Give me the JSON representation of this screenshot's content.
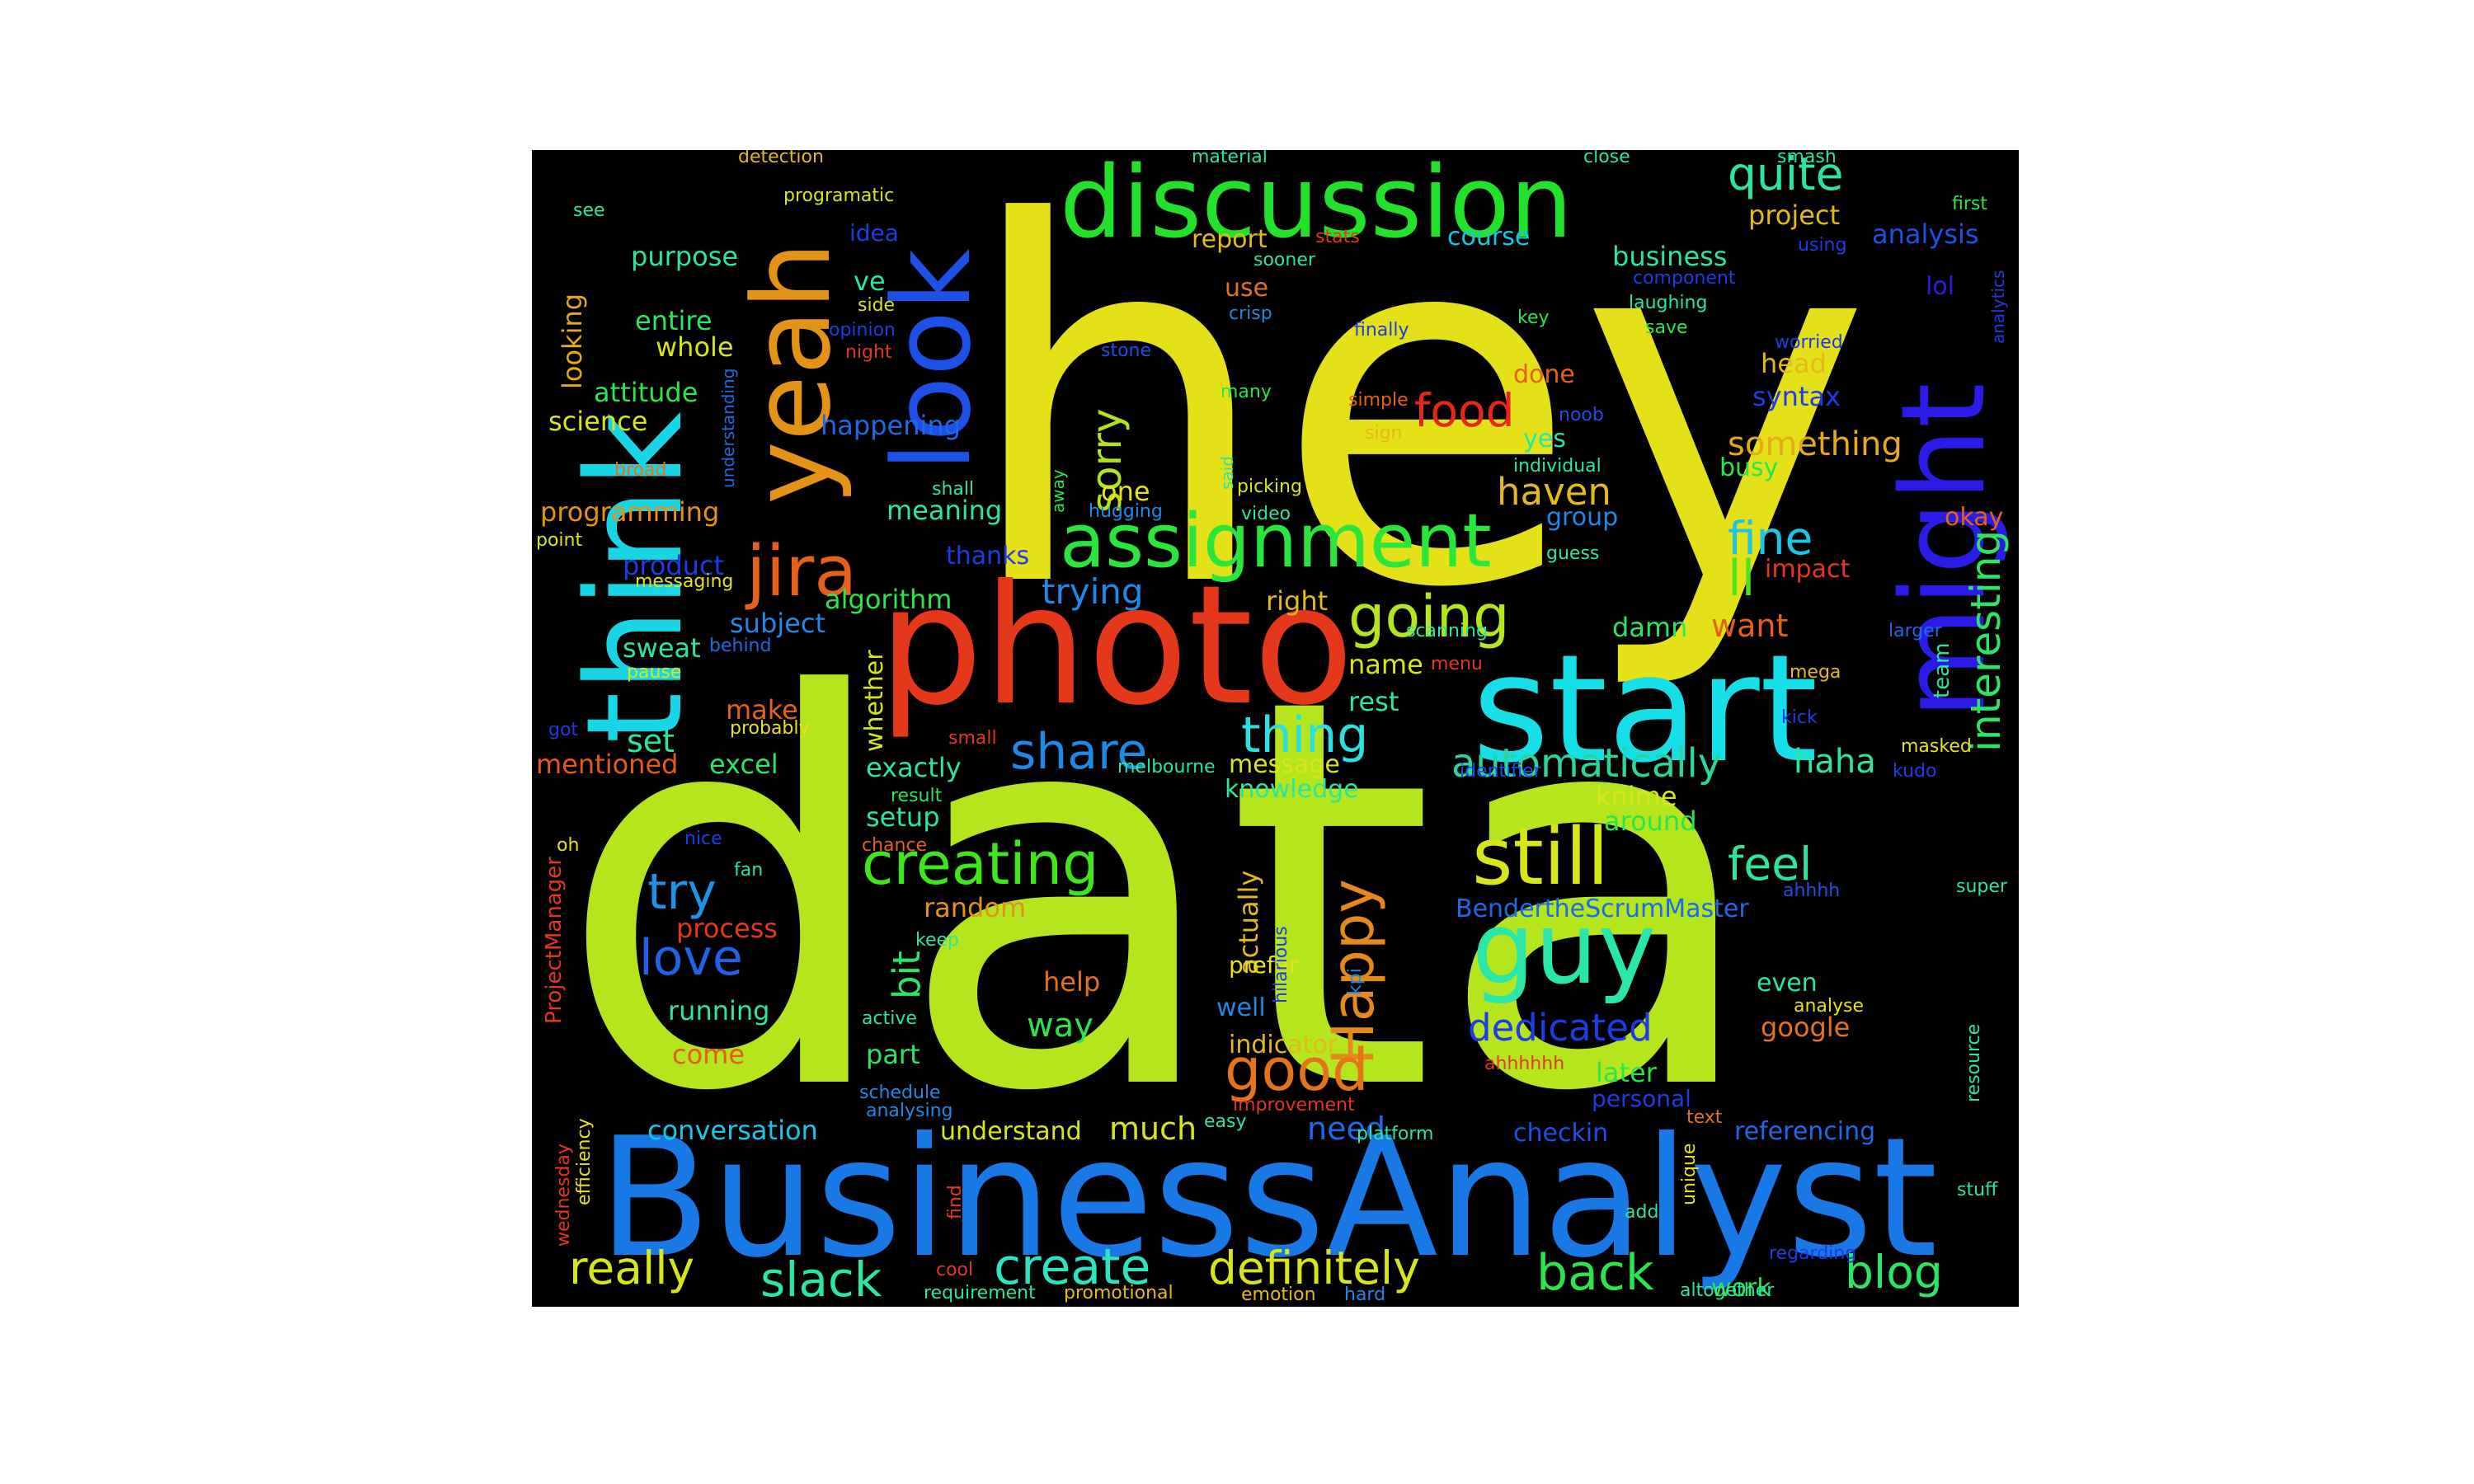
{
  "words": [
    {
      "text": "data",
      "color": "#b5e61d"
    },
    {
      "text": "hey",
      "color": "#e4e119"
    },
    {
      "text": "BusinessAnalyst",
      "color": "#1778e6"
    },
    {
      "text": "photo",
      "color": "#e53719"
    },
    {
      "text": "start",
      "color": "#17dfe8"
    },
    {
      "text": "think",
      "color": "#19d6e6"
    },
    {
      "text": "yeah",
      "color": "#e59317"
    },
    {
      "text": "look",
      "color": "#1c50e6"
    },
    {
      "text": "might",
      "color": "#2a1ce6"
    },
    {
      "text": "discussion",
      "color": "#21e12a"
    },
    {
      "text": "assignment",
      "color": "#2ae63c"
    },
    {
      "text": "guy",
      "color": "#2ae6a8"
    },
    {
      "text": "still",
      "color": "#d7e619"
    },
    {
      "text": "jira",
      "color": "#e56119"
    },
    {
      "text": "creating",
      "color": "#3fe619"
    },
    {
      "text": "going",
      "color": "#b5e619"
    },
    {
      "text": "Happy",
      "color": "#e5891a"
    },
    {
      "text": "good",
      "color": "#e5731a"
    },
    {
      "text": "love",
      "color": "#1f63e6"
    },
    {
      "text": "try",
      "color": "#1c93e6"
    },
    {
      "text": "share",
      "color": "#1c8ae6"
    },
    {
      "text": "thing",
      "color": "#2ae0e0"
    },
    {
      "text": "automatically",
      "color": "#2ad6a0"
    },
    {
      "text": "food",
      "color": "#e52619"
    },
    {
      "text": "fine",
      "color": "#19c6e6"
    },
    {
      "text": "interesting",
      "color": "#2ae664"
    },
    {
      "text": "quite",
      "color": "#2ae6a0"
    },
    {
      "text": "ll",
      "color": "#4fe619"
    },
    {
      "text": "feel",
      "color": "#2ae6a0"
    },
    {
      "text": "sorry",
      "color": "#b0e619"
    },
    {
      "text": "dedicated",
      "color": "#1c3ce6"
    },
    {
      "text": "create",
      "color": "#2ae6c0"
    },
    {
      "text": "definitely",
      "color": "#d7e619"
    },
    {
      "text": "really",
      "color": "#d7e619"
    },
    {
      "text": "slack",
      "color": "#2ae6a8"
    },
    {
      "text": "back",
      "color": "#2ae64c"
    },
    {
      "text": "blog",
      "color": "#2ae664"
    },
    {
      "text": "conversation",
      "color": "#19c6e6"
    },
    {
      "text": "much",
      "color": "#d7e619"
    },
    {
      "text": "need",
      "color": "#1c6ae6"
    },
    {
      "text": "haha",
      "color": "#2ae6a0"
    },
    {
      "text": "something",
      "color": "#e5a919"
    },
    {
      "text": "haven",
      "color": "#e5b919"
    },
    {
      "text": "trying",
      "color": "#1c8ae6"
    },
    {
      "text": "bit",
      "color": "#2ae664"
    },
    {
      "text": "way",
      "color": "#2ae64c"
    },
    {
      "text": "project",
      "color": "#e5b919"
    },
    {
      "text": "want",
      "color": "#e56119"
    },
    {
      "text": "set",
      "color": "#2ae6a0"
    },
    {
      "text": "actually",
      "color": "#e5b919"
    },
    {
      "text": "referencing",
      "color": "#1c6ae6"
    },
    {
      "text": "checkin",
      "color": "#1c50e6"
    },
    {
      "text": "understand",
      "color": "#d7e619"
    },
    {
      "text": "BendertheScrumMaster",
      "color": "#1c6ae6"
    },
    {
      "text": "business",
      "color": "#2ae6a0"
    },
    {
      "text": "analysis",
      "color": "#1c50e6"
    },
    {
      "text": "purpose",
      "color": "#2ae6a0"
    },
    {
      "text": "entire",
      "color": "#2ae664"
    },
    {
      "text": "whole",
      "color": "#d7e619"
    },
    {
      "text": "attitude",
      "color": "#2ae64c"
    },
    {
      "text": "science",
      "color": "#d7e619"
    },
    {
      "text": "happening",
      "color": "#1c6ae6"
    },
    {
      "text": "meaning",
      "color": "#2ae6a0"
    },
    {
      "text": "algorithm",
      "color": "#2ae64c"
    },
    {
      "text": "subject",
      "color": "#1c8ae6"
    },
    {
      "text": "sweat",
      "color": "#2ae6a0"
    },
    {
      "text": "product",
      "color": "#1c3ce6"
    },
    {
      "text": "programming",
      "color": "#e59317"
    },
    {
      "text": "looking",
      "color": "#e5a919"
    },
    {
      "text": "mentioned",
      "color": "#e55a19"
    },
    {
      "text": "excel",
      "color": "#2ae664"
    },
    {
      "text": "exactly",
      "color": "#2ae6a0"
    },
    {
      "text": "setup",
      "color": "#2ae6a0"
    },
    {
      "text": "random",
      "color": "#e59317"
    },
    {
      "text": "running",
      "color": "#2ae6a0"
    },
    {
      "text": "come",
      "color": "#e55a19"
    },
    {
      "text": "process",
      "color": "#e53719"
    },
    {
      "text": "part",
      "color": "#2ae664"
    },
    {
      "text": "help",
      "color": "#e5731a"
    },
    {
      "text": "make",
      "color": "#e56119"
    },
    {
      "text": "whether",
      "color": "#d7e619"
    },
    {
      "text": "message",
      "color": "#d7e619"
    },
    {
      "text": "knowledge",
      "color": "#2ae6a0"
    },
    {
      "text": "indicator",
      "color": "#e5b919"
    },
    {
      "text": "well",
      "color": "#1c8ae6"
    },
    {
      "text": "prefer",
      "color": "#e5e219"
    },
    {
      "text": "even",
      "color": "#2ae6a0"
    },
    {
      "text": "google",
      "color": "#e5731a"
    },
    {
      "text": "later",
      "color": "#2ae64c"
    },
    {
      "text": "personal",
      "color": "#1c3ce6"
    },
    {
      "text": "knime",
      "color": "#d7e619"
    },
    {
      "text": "around",
      "color": "#2ae64c"
    },
    {
      "text": "damn",
      "color": "#2ae664"
    },
    {
      "text": "name",
      "color": "#d7e619"
    },
    {
      "text": "rest",
      "color": "#2ae6a0"
    },
    {
      "text": "right",
      "color": "#e5b919"
    },
    {
      "text": "one",
      "color": "#e5e219"
    },
    {
      "text": "group",
      "color": "#1c8ae6"
    },
    {
      "text": "yes",
      "color": "#2ae6a0"
    },
    {
      "text": "busy",
      "color": "#2ae64c"
    },
    {
      "text": "syntax",
      "color": "#1c3ce6"
    },
    {
      "text": "head",
      "color": "#e5b919"
    },
    {
      "text": "done",
      "color": "#e56119"
    },
    {
      "text": "okay",
      "color": "#e56119"
    },
    {
      "text": "impact",
      "color": "#e53719"
    },
    {
      "text": "lol",
      "color": "#2a1ce6"
    },
    {
      "text": "report",
      "color": "#e5b919"
    },
    {
      "text": "use",
      "color": "#e5731a"
    },
    {
      "text": "course",
      "color": "#19c6e6"
    },
    {
      "text": "ve",
      "color": "#2ae6a0"
    },
    {
      "text": "idea",
      "color": "#1c3ce6"
    },
    {
      "text": "thanks",
      "color": "#1c3ce6"
    },
    {
      "text": "work",
      "color": "#2ae64c"
    },
    {
      "text": "team",
      "color": "#2ae6a0"
    },
    {
      "text": "detection",
      "color": "#e5b919"
    },
    {
      "text": "programatic",
      "color": "#d7e619"
    },
    {
      "text": "material",
      "color": "#2ae6a0"
    },
    {
      "text": "close",
      "color": "#2ae6a0"
    },
    {
      "text": "smash",
      "color": "#2ae6a0"
    },
    {
      "text": "first",
      "color": "#2ae64c"
    },
    {
      "text": "see",
      "color": "#2ae6a0"
    },
    {
      "text": "stats",
      "color": "#e53719"
    },
    {
      "text": "sooner",
      "color": "#2ae6a0"
    },
    {
      "text": "using",
      "color": "#1c3ce6"
    },
    {
      "text": "component",
      "color": "#1c3ce6"
    },
    {
      "text": "laughing",
      "color": "#2ae6a0"
    },
    {
      "text": "save",
      "color": "#2ae64c"
    },
    {
      "text": "worried",
      "color": "#1c3ce6"
    },
    {
      "text": "side",
      "color": "#d7e619"
    },
    {
      "text": "opinion",
      "color": "#1c3ce6"
    },
    {
      "text": "night",
      "color": "#e53719"
    },
    {
      "text": "crisp",
      "color": "#1c8ae6"
    },
    {
      "text": "finally",
      "color": "#1c3ce6"
    },
    {
      "text": "key",
      "color": "#2ae64c"
    },
    {
      "text": "stone",
      "color": "#1c50e6"
    },
    {
      "text": "many",
      "color": "#2ae64c"
    },
    {
      "text": "simple",
      "color": "#e56119"
    },
    {
      "text": "sign",
      "color": "#e5b919"
    },
    {
      "text": "noob",
      "color": "#1c50e6"
    },
    {
      "text": "individual",
      "color": "#2ae6a0"
    },
    {
      "text": "understanding",
      "color": "#1c6ae6"
    },
    {
      "text": "broad",
      "color": "#e5731a"
    },
    {
      "text": "said",
      "color": "#2ae6a0"
    },
    {
      "text": "picking",
      "color": "#d7e619"
    },
    {
      "text": "shall",
      "color": "#2ae6a0"
    },
    {
      "text": "away",
      "color": "#2ae64c"
    },
    {
      "text": "hugging",
      "color": "#1c8ae6"
    },
    {
      "text": "video",
      "color": "#2ae6a0"
    },
    {
      "text": "point",
      "color": "#d7e619"
    },
    {
      "text": "messaging",
      "color": "#e5e219"
    },
    {
      "text": "guess",
      "color": "#2ae6a0"
    },
    {
      "text": "behind",
      "color": "#1c6ae6"
    },
    {
      "text": "scanning",
      "color": "#2ae6a0"
    },
    {
      "text": "larger",
      "color": "#1c6ae6"
    },
    {
      "text": "menu",
      "color": "#e53719"
    },
    {
      "text": "mega",
      "color": "#e5b919"
    },
    {
      "text": "pause",
      "color": "#d7e619"
    },
    {
      "text": "kick",
      "color": "#1c3ce6"
    },
    {
      "text": "got",
      "color": "#1c3ce6"
    },
    {
      "text": "probably",
      "color": "#e5e219"
    },
    {
      "text": "small",
      "color": "#e53719"
    },
    {
      "text": "masked",
      "color": "#e5e219"
    },
    {
      "text": "melbourne",
      "color": "#2ae6a0"
    },
    {
      "text": "identifier",
      "color": "#1c50e6"
    },
    {
      "text": "kudo",
      "color": "#1c3ce6"
    },
    {
      "text": "result",
      "color": "#2ae64c"
    },
    {
      "text": "ProjectManager",
      "color": "#e53719"
    },
    {
      "text": "oh",
      "color": "#e5e219"
    },
    {
      "text": "nice",
      "color": "#1c3ce6"
    },
    {
      "text": "chance",
      "color": "#e56119"
    },
    {
      "text": "hilarious",
      "color": "#1c3ce6"
    },
    {
      "text": "ahhhh",
      "color": "#1c50e6"
    },
    {
      "text": "super",
      "color": "#2ae6a0"
    },
    {
      "text": "fan",
      "color": "#2ae6a0"
    },
    {
      "text": "keep",
      "color": "#2ae6a0"
    },
    {
      "text": "kpi",
      "color": "#1c8ae6"
    },
    {
      "text": "analyse",
      "color": "#e5e219"
    },
    {
      "text": "active",
      "color": "#2ae6a0"
    },
    {
      "text": "ahhhhhh",
      "color": "#e53719"
    },
    {
      "text": "resource",
      "color": "#2ae6a0"
    },
    {
      "text": "schedule",
      "color": "#1c8ae6"
    },
    {
      "text": "analysing",
      "color": "#1c8ae6"
    },
    {
      "text": "improvement",
      "color": "#e53719"
    },
    {
      "text": "easy",
      "color": "#2ae6a0"
    },
    {
      "text": "platform",
      "color": "#2ae6a0"
    },
    {
      "text": "text",
      "color": "#e5731a"
    },
    {
      "text": "unique",
      "color": "#e5e219"
    },
    {
      "text": "wednesday",
      "color": "#e53719"
    },
    {
      "text": "efficiency",
      "color": "#e5e219"
    },
    {
      "text": "find",
      "color": "#e53719"
    },
    {
      "text": "add",
      "color": "#2ae6a0"
    },
    {
      "text": "stuff",
      "color": "#2ae6a0"
    },
    {
      "text": "regarding",
      "color": "#1c3ce6"
    },
    {
      "text": "cool",
      "color": "#e53719"
    },
    {
      "text": "requirement",
      "color": "#2ae6a0"
    },
    {
      "text": "promotional",
      "color": "#e5b919"
    },
    {
      "text": "emotion",
      "color": "#e5b919"
    },
    {
      "text": "hard",
      "color": "#1c8ae6"
    },
    {
      "text": "altogether",
      "color": "#2ae6a0"
    },
    {
      "text": "analytics",
      "color": "#1c3ce6"
    }
  ]
}
